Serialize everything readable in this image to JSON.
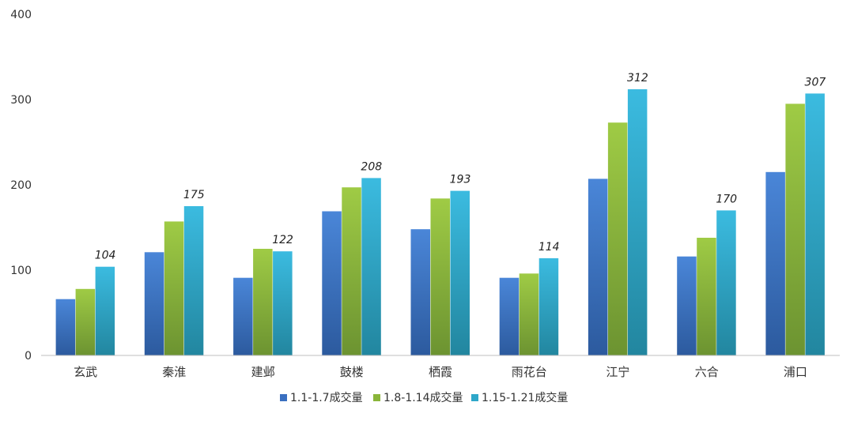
{
  "chart_data": {
    "type": "bar",
    "categories": [
      "玄武",
      "秦淮",
      "建邺",
      "鼓楼",
      "栖霞",
      "雨花台",
      "江宁",
      "六合",
      "浦口"
    ],
    "series": [
      {
        "name": "1.1-1.7成交量",
        "color": "#3a6fc0",
        "values": [
          66,
          121,
          91,
          169,
          148,
          91,
          207,
          116,
          215
        ]
      },
      {
        "name": "1.8-1.14成交量",
        "color": "#8ab53a",
        "values": [
          78,
          157,
          125,
          197,
          184,
          96,
          273,
          138,
          295
        ]
      },
      {
        "name": "1.15-1.21成交量",
        "color": "#2ea7c9",
        "values": [
          104,
          175,
          122,
          208,
          193,
          114,
          312,
          170,
          307
        ]
      }
    ],
    "data_labels": [
      "104",
      "175",
      "122",
      "208",
      "193",
      "114",
      "312",
      "170",
      "307"
    ],
    "y_ticks": [
      "0",
      "100",
      "200",
      "300",
      "400"
    ],
    "ylim": [
      0,
      400
    ],
    "grid": false,
    "legend_position": "bottom"
  }
}
